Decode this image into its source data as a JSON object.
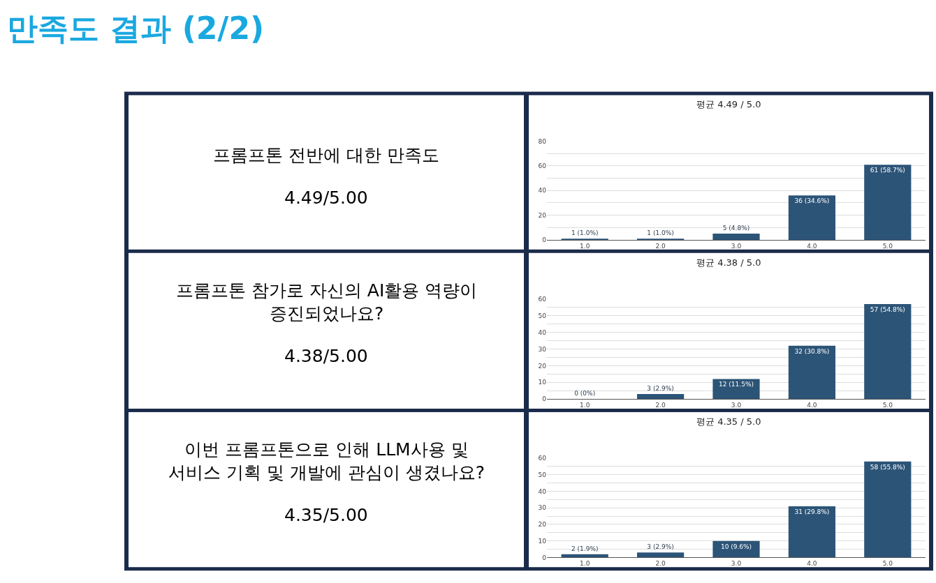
{
  "chart_data": [
    {
      "type": "other",
      "title": "만족도 결과 (2/2)"
    },
    {
      "type": "other",
      "title": "프롬프톤 전반에 대한 만족도",
      "annotations": [
        "4.49/5.00"
      ]
    },
    {
      "type": "bar",
      "title": "평균 4.49 / 5.0",
      "categories": [
        "1.0",
        "2.0",
        "3.0",
        "4.0",
        "5.0"
      ],
      "values": [
        1,
        1,
        5,
        36,
        61
      ],
      "value_labels": [
        "1 (1.0%)",
        "1 (1.0%)",
        "5 (4.8%)",
        "36 (34.6%)",
        "61 (58.7%)"
      ],
      "color": "#2c5477",
      "ylim": [
        0,
        80
      ],
      "yticks": [
        0,
        {
          "value": 10,
          "label": null
        },
        20,
        {
          "value": 30,
          "label": null
        },
        40,
        {
          "value": 50,
          "label": null
        },
        60,
        {
          "value": 70,
          "label": null
        },
        80
      ],
      "grid": "y"
    },
    {
      "type": "other",
      "title": "프롬프톤 참가로 자신의 AI활용 역량이\n증진되었나요?",
      "annotations": [
        "4.38/5.00"
      ]
    },
    {
      "type": "bar",
      "title": "평균 4.38 / 5.0",
      "categories": [
        "1.0",
        "2.0",
        "3.0",
        "4.0",
        "5.0"
      ],
      "values": [
        0,
        3,
        12,
        32,
        57
      ],
      "value_labels": [
        "0 (0%)",
        "3 (2.9%)",
        "12 (11.5%)",
        "32 (30.8%)",
        "57 (54.8%)"
      ],
      "color": "#2c5477",
      "ylim": [
        0,
        60
      ],
      "yticks": [
        0,
        {
          "value": 5,
          "label": null
        },
        10,
        {
          "value": 15,
          "label": null
        },
        20,
        {
          "value": 25,
          "label": null
        },
        30,
        {
          "value": 35,
          "label": null
        },
        40,
        {
          "value": 45,
          "label": null
        },
        50,
        {
          "value": 55,
          "label": null
        },
        60
      ],
      "grid": "y"
    },
    {
      "type": "other",
      "title": "이번 프롬프톤으로 인해 LLM사용 및\n서비스 기획 및 개발에 관심이 생겼나요?",
      "annotations": [
        "4.35/5.00"
      ]
    },
    {
      "type": "bar",
      "title": "평균 4.35 / 5.0",
      "categories": [
        "1.0",
        "2.0",
        "3.0",
        "4.0",
        "5.0"
      ],
      "values": [
        2,
        3,
        10,
        31,
        58
      ],
      "value_labels": [
        "2 (1.9%)",
        "3 (2.9%)",
        "10 (9.6%)",
        "31 (29.8%)",
        "58 (55.8%)"
      ],
      "color": "#2c5477",
      "ylim": [
        0,
        60
      ],
      "yticks": [
        0,
        {
          "value": 5,
          "label": null
        },
        10,
        {
          "value": 15,
          "label": null
        },
        20,
        {
          "value": 25,
          "label": null
        },
        30,
        {
          "value": 35,
          "label": null
        },
        40,
        {
          "value": 45,
          "label": null
        },
        50,
        {
          "value": 55,
          "label": null
        },
        60
      ],
      "grid": "y"
    }
  ]
}
